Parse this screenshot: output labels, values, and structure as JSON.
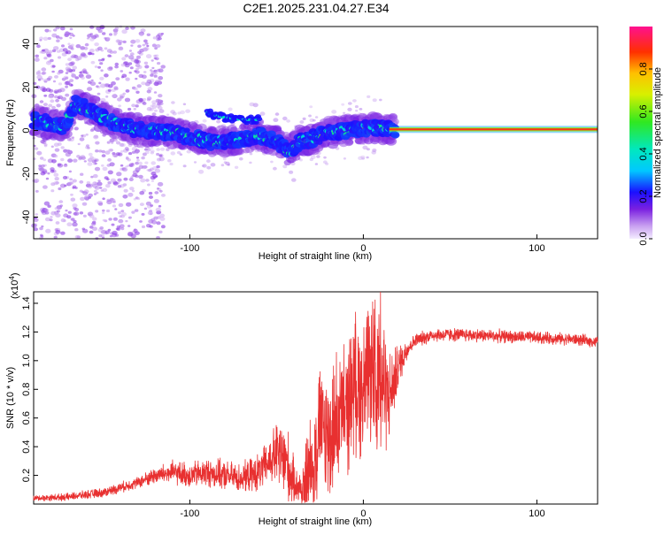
{
  "title": "C2E1.2025.231.04.27.E34",
  "chart_data": [
    {
      "type": "heatmap",
      "xlabel": "Height of straight line (km)",
      "ylabel": "Frequency (Hz)",
      "xlim": [
        -190,
        135
      ],
      "ylim": [
        -50,
        48
      ],
      "x_ticks": [
        -100,
        0,
        100
      ],
      "y_ticks": [
        -40,
        -20,
        0,
        20,
        40
      ],
      "colorbar": {
        "label": "Normalized spectral amplitude",
        "range": [
          0,
          1
        ],
        "ticks": [
          "0.0",
          "0.2",
          "0.4",
          "0.6",
          "0.8"
        ]
      },
      "ridge": [
        [
          -190,
          5
        ],
        [
          -180,
          3
        ],
        [
          -172,
          2
        ],
        [
          -166,
          12
        ],
        [
          -160,
          11
        ],
        [
          -152,
          7
        ],
        [
          -140,
          2
        ],
        [
          -125,
          0
        ],
        [
          -110,
          -1
        ],
        [
          -100,
          -3
        ],
        [
          -90,
          -5
        ],
        [
          -80,
          -5
        ],
        [
          -70,
          -4
        ],
        [
          -60,
          -2
        ],
        [
          -50,
          -5
        ],
        [
          -42,
          -10
        ],
        [
          -37,
          -5
        ],
        [
          -30,
          -4
        ],
        [
          -20,
          -1
        ],
        [
          -10,
          0
        ],
        [
          0,
          1
        ],
        [
          10,
          1
        ],
        [
          20,
          0.5
        ],
        [
          135,
          0.5
        ]
      ],
      "upper_branch": [
        [
          -90,
          8
        ],
        [
          -80,
          6
        ],
        [
          -70,
          5
        ],
        [
          -60,
          5
        ]
      ]
    },
    {
      "type": "line",
      "xlabel": "Height of straight line (km)",
      "ylabel": "SNR (10 * v/v)",
      "y_multiplier": "(x10",
      "y_multiplier_exp": "4",
      "y_multiplier_close": ")",
      "xlim": [
        -190,
        135
      ],
      "ylim": [
        0,
        1.48
      ],
      "x_ticks": [
        -100,
        0,
        100
      ],
      "y_ticks": [
        "0.2",
        "0.4",
        "0.6",
        "0.8",
        "1.0",
        "1.2",
        "1.4"
      ],
      "color": "#e83030",
      "envelope": [
        [
          -190,
          0.04
        ],
        [
          -170,
          0.05
        ],
        [
          -150,
          0.08
        ],
        [
          -130,
          0.15
        ],
        [
          -120,
          0.2
        ],
        [
          -110,
          0.22
        ],
        [
          -100,
          0.2
        ],
        [
          -90,
          0.22
        ],
        [
          -80,
          0.2
        ],
        [
          -70,
          0.18
        ],
        [
          -60,
          0.22
        ],
        [
          -50,
          0.35
        ],
        [
          -45,
          0.3
        ],
        [
          -40,
          0.15
        ],
        [
          -35,
          0.1
        ],
        [
          -30,
          0.25
        ],
        [
          -25,
          0.55
        ],
        [
          -20,
          0.45
        ],
        [
          -15,
          0.6
        ],
        [
          -10,
          0.65
        ],
        [
          -5,
          0.85
        ],
        [
          0,
          0.8
        ],
        [
          5,
          0.95
        ],
        [
          10,
          0.9
        ],
        [
          15,
          0.75
        ],
        [
          20,
          0.95
        ],
        [
          25,
          1.08
        ],
        [
          30,
          1.14
        ],
        [
          40,
          1.18
        ],
        [
          60,
          1.18
        ],
        [
          80,
          1.17
        ],
        [
          100,
          1.16
        ],
        [
          120,
          1.15
        ],
        [
          135,
          1.13
        ]
      ],
      "noise_amp": [
        [
          -190,
          0.02
        ],
        [
          -130,
          0.04
        ],
        [
          -110,
          0.08
        ],
        [
          -90,
          0.1
        ],
        [
          -70,
          0.1
        ],
        [
          -55,
          0.15
        ],
        [
          -45,
          0.3
        ],
        [
          -38,
          0.1
        ],
        [
          -30,
          0.4
        ],
        [
          -20,
          0.45
        ],
        [
          -10,
          0.45
        ],
        [
          0,
          0.5
        ],
        [
          5,
          0.45
        ],
        [
          10,
          0.6
        ],
        [
          15,
          0.3
        ],
        [
          22,
          0.12
        ],
        [
          28,
          0.05
        ],
        [
          135,
          0.04
        ]
      ]
    }
  ]
}
